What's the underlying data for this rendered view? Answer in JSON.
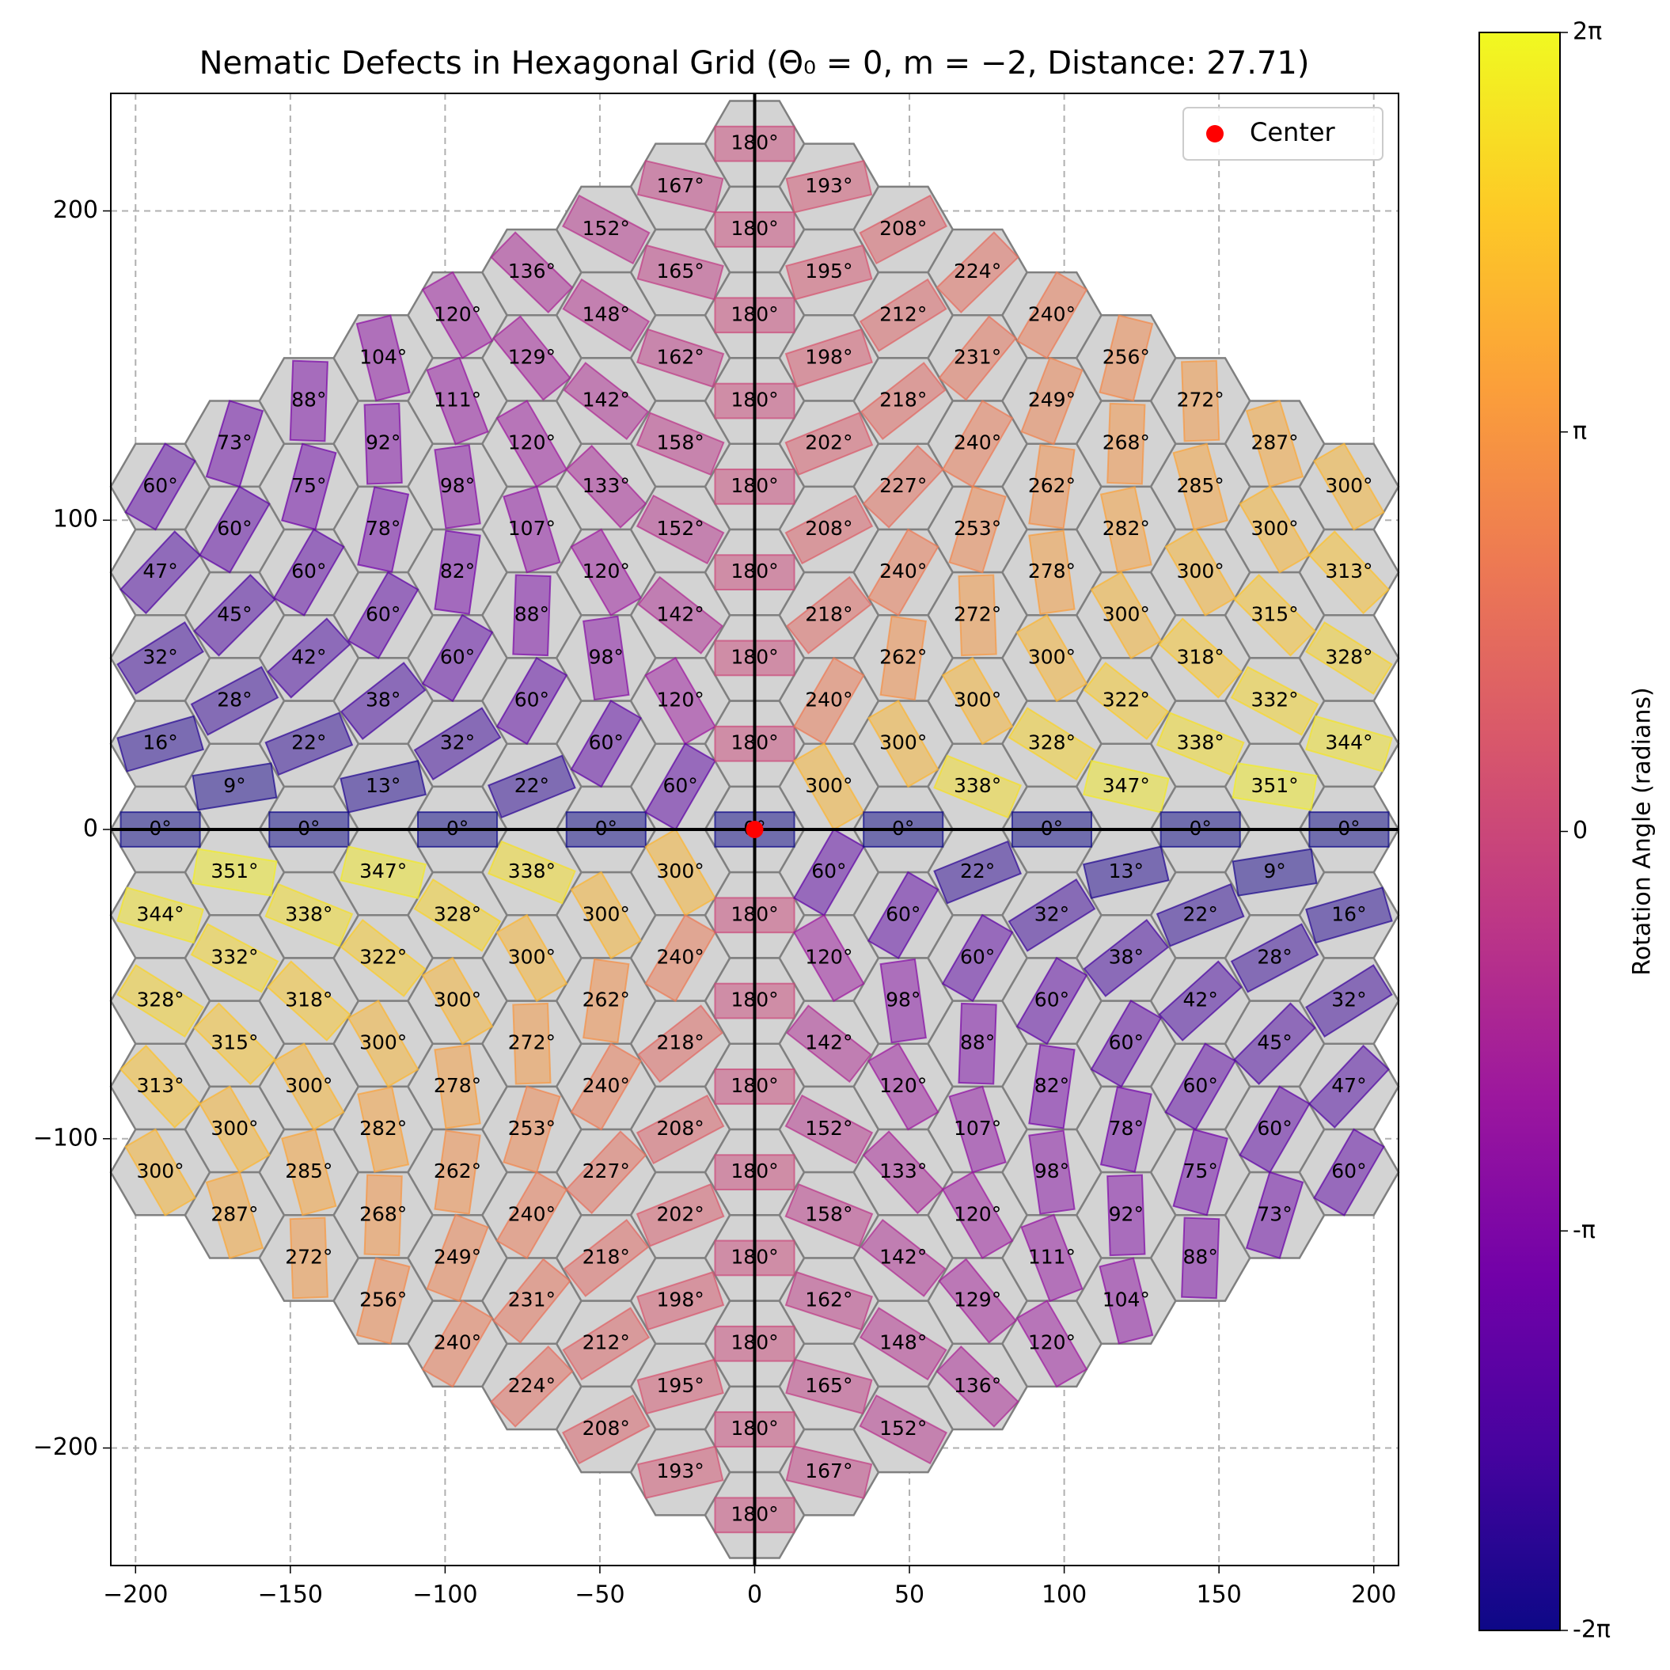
{
  "chart_data": {
    "type": "hexgrid",
    "title": "Nematic Defects in Hexagonal Grid (Θ₀ = 0, m = −2, Distance: 27.71)",
    "xlim": [
      -208,
      208
    ],
    "ylim": [
      -238,
      238
    ],
    "xticks": [
      {
        "value": -200,
        "label": "−200"
      },
      {
        "value": -150,
        "label": "−150"
      },
      {
        "value": -100,
        "label": "−100"
      },
      {
        "value": -50,
        "label": "−50"
      },
      0,
      50,
      100,
      150,
      200
    ],
    "yticks": [
      {
        "value": -200,
        "label": "−200"
      },
      {
        "value": -100,
        "label": "−100"
      },
      0,
      100,
      200
    ],
    "grid": true,
    "legend": "upper right",
    "center": {
      "name": "Center",
      "color": "#ff0000",
      "x": 0,
      "y": 0
    },
    "colorbar": {
      "label": "Rotation Angle (radians)",
      "lim": [
        -6.283185307179586,
        6.283185307179586
      ],
      "ticks": [
        {
          "value": -6.283185307179586,
          "label": "-2π"
        },
        {
          "value": -3.141592653589793,
          "label": "-π"
        },
        0,
        {
          "value": 3.141592653589793,
          "label": "π"
        },
        {
          "value": 6.283185307179586,
          "label": "2π"
        }
      ],
      "colormap": [
        "#0d0887",
        "#46039f",
        "#7201a8",
        "#9c179e",
        "#bd3786",
        "#d8576b",
        "#ed7953",
        "#fb9f3a",
        "#fdca26",
        "#f0f921"
      ]
    },
    "columns": [
      {
        "x": -192,
        "y": [
          110.85,
          83.14,
          55.43,
          27.71,
          0,
          -27.71,
          -55.43,
          -83.14,
          -110.85
        ],
        "values": [
          60,
          47,
          32,
          16,
          0,
          344,
          328,
          313,
          300
        ],
        "value_labels": [
          "60°",
          "47°",
          "32°",
          "16°",
          "0°",
          "344°",
          "328°",
          "313°",
          "300°"
        ]
      },
      {
        "x": -168,
        "y": [
          124.71,
          96.99,
          69.28,
          41.57,
          13.86,
          -13.86,
          -41.57,
          -69.28,
          -96.99,
          -124.71
        ],
        "values": [
          73,
          60,
          45,
          28,
          9,
          351,
          332,
          315,
          300,
          287
        ],
        "value_labels": [
          "73°",
          "60°",
          "45°",
          "28°",
          "9°",
          "351°",
          "332°",
          "315°",
          "300°",
          "287°"
        ]
      },
      {
        "x": -144,
        "y": [
          138.56,
          110.85,
          83.14,
          55.43,
          27.71,
          0,
          -27.71,
          -55.43,
          -83.14,
          -110.85,
          -138.56
        ],
        "values": [
          88,
          75,
          60,
          42,
          22,
          0,
          338,
          318,
          300,
          285,
          272
        ],
        "value_labels": [
          "88°",
          "75°",
          "60°",
          "42°",
          "22°",
          "0°",
          "338°",
          "318°",
          "300°",
          "285°",
          "272°"
        ]
      },
      {
        "x": -120,
        "y": [
          152.42,
          124.71,
          96.99,
          69.28,
          41.57,
          13.86,
          -13.86,
          -41.57,
          -69.28,
          -96.99,
          -124.71,
          -152.42
        ],
        "values": [
          104,
          92,
          78,
          60,
          38,
          13,
          347,
          322,
          300,
          282,
          268,
          256
        ],
        "value_labels": [
          "104°",
          "92°",
          "78°",
          "60°",
          "38°",
          "13°",
          "347°",
          "322°",
          "300°",
          "282°",
          "268°",
          "256°"
        ]
      },
      {
        "x": -96,
        "y": [
          166.28,
          138.56,
          110.85,
          83.14,
          55.43,
          27.71,
          0,
          -27.71,
          -55.43,
          -83.14,
          -110.85,
          -138.56,
          -166.28
        ],
        "values": [
          120,
          111,
          98,
          82,
          60,
          32,
          0,
          328,
          300,
          278,
          262,
          249,
          240
        ],
        "value_labels": [
          "120°",
          "111°",
          "98°",
          "82°",
          "60°",
          "32°",
          "0°",
          "328°",
          "300°",
          "278°",
          "262°",
          "249°",
          "240°"
        ]
      },
      {
        "x": -72,
        "y": [
          180.13,
          152.42,
          124.71,
          96.99,
          69.28,
          41.57,
          13.86,
          -13.86,
          -41.57,
          -69.28,
          -96.99,
          -124.71,
          -152.42,
          -180.13
        ],
        "values": [
          136,
          129,
          120,
          107,
          88,
          60,
          22,
          338,
          300,
          272,
          253,
          240,
          231,
          224
        ],
        "value_labels": [
          "136°",
          "129°",
          "120°",
          "107°",
          "88°",
          "60°",
          "22°",
          "338°",
          "300°",
          "272°",
          "253°",
          "240°",
          "231°",
          "224°"
        ]
      },
      {
        "x": -48,
        "y": [
          193.99,
          166.28,
          138.56,
          110.85,
          83.14,
          55.43,
          27.71,
          0,
          -27.71,
          -55.43,
          -83.14,
          -110.85,
          -138.56,
          -166.28,
          -193.99
        ],
        "values": [
          152,
          148,
          142,
          133,
          120,
          98,
          60,
          0,
          300,
          262,
          240,
          227,
          218,
          212,
          208
        ],
        "value_labels": [
          "152°",
          "148°",
          "142°",
          "133°",
          "120°",
          "98°",
          "60°",
          "0°",
          "300°",
          "262°",
          "240°",
          "227°",
          "218°",
          "212°",
          "208°"
        ]
      },
      {
        "x": -24,
        "y": [
          207.85,
          180.13,
          152.42,
          124.71,
          96.99,
          69.28,
          41.57,
          13.86,
          -13.86,
          -41.57,
          -69.28,
          -96.99,
          -124.71,
          -152.42,
          -180.13,
          -207.85
        ],
        "values": [
          167,
          165,
          162,
          158,
          152,
          142,
          120,
          60,
          300,
          240,
          218,
          208,
          202,
          198,
          195,
          193
        ],
        "value_labels": [
          "167°",
          "165°",
          "162°",
          "158°",
          "152°",
          "142°",
          "120°",
          "60°",
          "300°",
          "240°",
          "218°",
          "208°",
          "202°",
          "198°",
          "195°",
          "193°"
        ]
      },
      {
        "x": 0,
        "y": [
          221.7,
          193.99,
          166.28,
          138.56,
          110.85,
          83.14,
          55.43,
          27.71,
          0,
          -27.71,
          -55.43,
          -83.14,
          -110.85,
          -138.56,
          -166.28,
          -193.99,
          -221.7
        ],
        "values": [
          180,
          180,
          180,
          180,
          180,
          180,
          180,
          180,
          0,
          180,
          180,
          180,
          180,
          180,
          180,
          180,
          180
        ],
        "value_labels": [
          "180°",
          "180°",
          "180°",
          "180°",
          "180°",
          "180°",
          "180°",
          "180°",
          "0°",
          "180°",
          "180°",
          "180°",
          "180°",
          "180°",
          "180°",
          "180°",
          "180°"
        ]
      },
      {
        "x": 24,
        "y": [
          207.85,
          180.13,
          152.42,
          124.71,
          96.99,
          69.28,
          41.57,
          13.86,
          -13.86,
          -41.57,
          -69.28,
          -96.99,
          -124.71,
          -152.42,
          -180.13,
          -207.85
        ],
        "values": [
          193,
          195,
          198,
          202,
          208,
          218,
          240,
          300,
          60,
          120,
          142,
          152,
          158,
          162,
          165,
          167
        ],
        "value_labels": [
          "193°",
          "195°",
          "198°",
          "202°",
          "208°",
          "218°",
          "240°",
          "300°",
          "60°",
          "120°",
          "142°",
          "152°",
          "158°",
          "162°",
          "165°",
          "167°"
        ]
      },
      {
        "x": 48,
        "y": [
          193.99,
          166.28,
          138.56,
          110.85,
          83.14,
          55.43,
          27.71,
          0,
          -27.71,
          -55.43,
          -83.14,
          -110.85,
          -138.56,
          -166.28,
          -193.99
        ],
        "values": [
          208,
          212,
          218,
          227,
          240,
          262,
          300,
          0,
          60,
          98,
          120,
          133,
          142,
          148,
          152
        ],
        "value_labels": [
          "208°",
          "212°",
          "218°",
          "227°",
          "240°",
          "262°",
          "300°",
          "0°",
          "60°",
          "98°",
          "120°",
          "133°",
          "142°",
          "148°",
          "152°"
        ]
      },
      {
        "x": 72,
        "y": [
          180.13,
          152.42,
          124.71,
          96.99,
          69.28,
          41.57,
          13.86,
          -13.86,
          -41.57,
          -69.28,
          -96.99,
          -124.71,
          -152.42,
          -180.13
        ],
        "values": [
          224,
          231,
          240,
          253,
          272,
          300,
          338,
          22,
          60,
          88,
          107,
          120,
          129,
          136
        ],
        "value_labels": [
          "224°",
          "231°",
          "240°",
          "253°",
          "272°",
          "300°",
          "338°",
          "22°",
          "60°",
          "88°",
          "107°",
          "120°",
          "129°",
          "136°"
        ]
      },
      {
        "x": 96,
        "y": [
          166.28,
          138.56,
          110.85,
          83.14,
          55.43,
          27.71,
          0,
          -27.71,
          -55.43,
          -83.14,
          -110.85,
          -138.56,
          -166.28
        ],
        "values": [
          240,
          249,
          262,
          278,
          300,
          328,
          0,
          32,
          60,
          82,
          98,
          111,
          120
        ],
        "value_labels": [
          "240°",
          "249°",
          "262°",
          "278°",
          "300°",
          "328°",
          "0°",
          "32°",
          "60°",
          "82°",
          "98°",
          "111°",
          "120°"
        ]
      },
      {
        "x": 120,
        "y": [
          152.42,
          124.71,
          96.99,
          69.28,
          41.57,
          13.86,
          -13.86,
          -41.57,
          -69.28,
          -96.99,
          -124.71,
          -152.42
        ],
        "values": [
          256,
          268,
          282,
          300,
          322,
          347,
          13,
          38,
          60,
          78,
          92,
          104
        ],
        "value_labels": [
          "256°",
          "268°",
          "282°",
          "300°",
          "322°",
          "347°",
          "13°",
          "38°",
          "60°",
          "78°",
          "92°",
          "104°"
        ]
      },
      {
        "x": 144,
        "y": [
          138.56,
          110.85,
          83.14,
          55.43,
          27.71,
          0,
          -27.71,
          -55.43,
          -83.14,
          -110.85,
          -138.56
        ],
        "values": [
          272,
          285,
          300,
          318,
          338,
          0,
          22,
          42,
          60,
          75,
          88
        ],
        "value_labels": [
          "272°",
          "285°",
          "300°",
          "318°",
          "338°",
          "0°",
          "22°",
          "42°",
          "60°",
          "75°",
          "88°"
        ]
      },
      {
        "x": 168,
        "y": [
          124.71,
          96.99,
          69.28,
          41.57,
          13.86,
          -13.86,
          -41.57,
          -69.28,
          -96.99,
          -124.71
        ],
        "values": [
          287,
          300,
          315,
          332,
          351,
          9,
          28,
          45,
          60,
          73
        ],
        "value_labels": [
          "287°",
          "300°",
          "315°",
          "332°",
          "351°",
          "9°",
          "28°",
          "45°",
          "60°",
          "73°"
        ]
      },
      {
        "x": 192,
        "y": [
          110.85,
          83.14,
          55.43,
          27.71,
          0,
          -27.71,
          -55.43,
          -83.14,
          -110.85
        ],
        "values": [
          300,
          313,
          328,
          344,
          0,
          16,
          32,
          47,
          60
        ],
        "value_labels": [
          "300°",
          "313°",
          "328°",
          "344°",
          "0°",
          "16°",
          "32°",
          "47°",
          "60°"
        ]
      }
    ]
  }
}
